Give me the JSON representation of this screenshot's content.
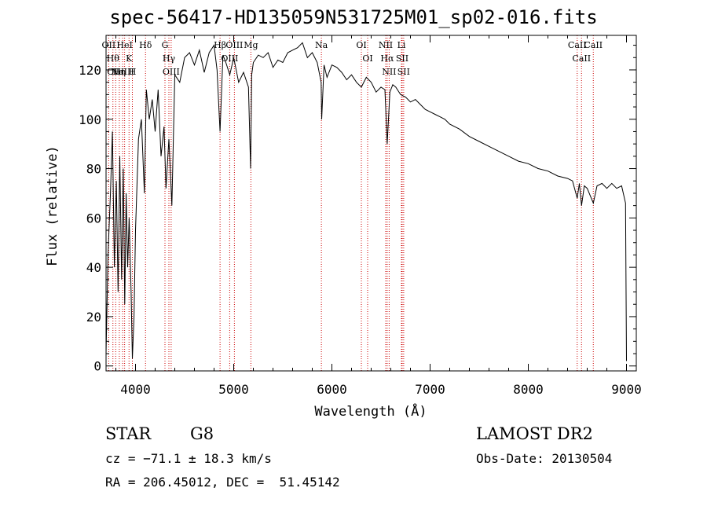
{
  "title": "spec-56417-HD135059N531725M01_sp02-016.fits",
  "info": {
    "object_class": "STAR",
    "subclass": "G8",
    "survey": "LAMOST DR2",
    "cz": "cz = −71.1 ± 18.3 km/s",
    "obs_date": "Obs-Date: 20130504",
    "coords": "RA = 206.45012, DEC =  51.45142"
  },
  "chart_data": {
    "type": "line",
    "title": "spec-56417-HD135059N531725M01_sp02-016.fits",
    "xlabel": "Wavelength (Å)",
    "ylabel": "Flux (relative)",
    "xlim": [
      3700,
      9100
    ],
    "ylim": [
      -2,
      134
    ],
    "xticks": [
      4000,
      5000,
      6000,
      7000,
      8000,
      9000
    ],
    "yticks": [
      0,
      20,
      40,
      60,
      80,
      100,
      120
    ],
    "grid": false,
    "series": [
      {
        "x": [
          3700,
          3720,
          3745,
          3765,
          3785,
          3805,
          3822,
          3840,
          3858,
          3875,
          3890,
          3905,
          3920,
          3935,
          3955,
          3968,
          3985,
          4000,
          4030,
          4060,
          4090,
          4110,
          4140,
          4170,
          4200,
          4230,
          4260,
          4290,
          4310,
          4340,
          4370,
          4400,
          4450,
          4500,
          4550,
          4600,
          4650,
          4700,
          4750,
          4800,
          4830,
          4861,
          4890,
          4920,
          4960,
          5000,
          5050,
          5100,
          5150,
          5172,
          5183,
          5200,
          5250,
          5300,
          5350,
          5400,
          5450,
          5500,
          5550,
          5600,
          5650,
          5700,
          5750,
          5800,
          5850,
          5890,
          5896,
          5920,
          5950,
          6000,
          6050,
          6100,
          6150,
          6200,
          6250,
          6300,
          6350,
          6400,
          6450,
          6500,
          6540,
          6563,
          6590,
          6620,
          6650,
          6700,
          6750,
          6800,
          6850,
          6900,
          6950,
          7000,
          7050,
          7100,
          7150,
          7200,
          7300,
          7400,
          7500,
          7600,
          7700,
          7800,
          7900,
          8000,
          8100,
          8200,
          8300,
          8400,
          8450,
          8498,
          8520,
          8542,
          8570,
          8600,
          8662,
          8700,
          8750,
          8800,
          8850,
          8900,
          8950,
          8990,
          9000
        ],
        "y": [
          5,
          45,
          70,
          95,
          40,
          75,
          30,
          85,
          35,
          80,
          25,
          70,
          40,
          60,
          30,
          3,
          20,
          55,
          92,
          100,
          70,
          112,
          100,
          108,
          95,
          112,
          85,
          97,
          72,
          92,
          65,
          118,
          115,
          125,
          127,
          122,
          128,
          119,
          127,
          130,
          120,
          95,
          126,
          123,
          118,
          125,
          115,
          119,
          113,
          80,
          118,
          123,
          126,
          125,
          127,
          121,
          124,
          123,
          127,
          128,
          129,
          131,
          125,
          127,
          123,
          115,
          100,
          122,
          117,
          122,
          121,
          119,
          116,
          118,
          115,
          113,
          117,
          115,
          111,
          113,
          112,
          90,
          111,
          114,
          113,
          110,
          109,
          107,
          108,
          106,
          104,
          103,
          102,
          101,
          100,
          98,
          96,
          93,
          91,
          89,
          87,
          85,
          83,
          82,
          80,
          79,
          77,
          76,
          75,
          68,
          74,
          65,
          73,
          72,
          66,
          73,
          74,
          72,
          74,
          72,
          73,
          66,
          2
        ]
      }
    ],
    "lines": [
      {
        "wl": 3727,
        "label": "OII"
      },
      {
        "wl": 3770,
        "label": "Hθ"
      },
      {
        "wl": 3798,
        "label": "OIII"
      },
      {
        "wl": 3835,
        "label": "Hη"
      },
      {
        "wl": 3869,
        "label": "NeIII"
      },
      {
        "wl": 3889,
        "label": "HeI"
      },
      {
        "wl": 3934,
        "label": "K"
      },
      {
        "wl": 3968,
        "label": "H"
      },
      {
        "wl": 4102,
        "label": "Hδ"
      },
      {
        "wl": 4300,
        "label": "G"
      },
      {
        "wl": 4340,
        "label": "Hγ"
      },
      {
        "wl": 4363,
        "label": "OIII"
      },
      {
        "wl": 4861,
        "label": "Hβ"
      },
      {
        "wl": 4959,
        "label": "OIII"
      },
      {
        "wl": 5007,
        "label": "OIII"
      },
      {
        "wl": 5175,
        "label": "Mg"
      },
      {
        "wl": 5893,
        "label": "Na"
      },
      {
        "wl": 6300,
        "label": "OI"
      },
      {
        "wl": 6364,
        "label": "OI"
      },
      {
        "wl": 6548,
        "label": "NII"
      },
      {
        "wl": 6563,
        "label": "Hα"
      },
      {
        "wl": 6583,
        "label": "NII"
      },
      {
        "wl": 6708,
        "label": "Li"
      },
      {
        "wl": 6716,
        "label": "SII"
      },
      {
        "wl": 6731,
        "label": "SII"
      },
      {
        "wl": 8498,
        "label": "CaII"
      },
      {
        "wl": 8542,
        "label": "CaII"
      },
      {
        "wl": 8662,
        "label": "CaII"
      }
    ],
    "line_color": "#cc0000",
    "spectrum_color": "#000000"
  }
}
